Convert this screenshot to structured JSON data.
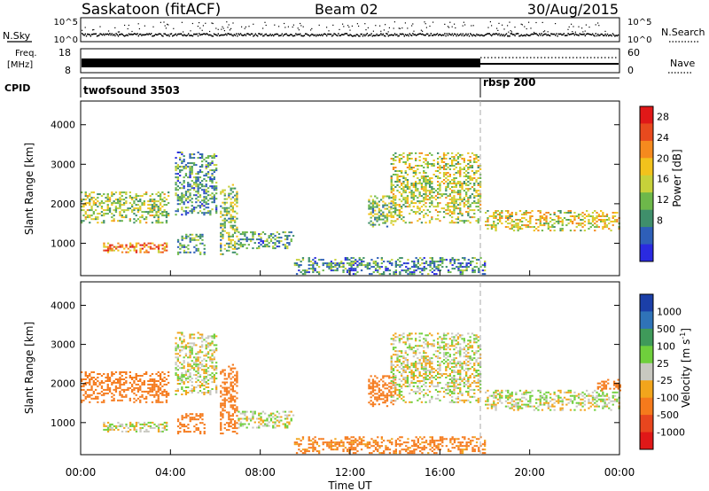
{
  "header": {
    "station": "Saskatoon (fitACF)",
    "beam": "Beam 02",
    "date": "30/Aug/2015"
  },
  "strip_panels": {
    "nsky": {
      "label": "N.Sky",
      "ticks": [
        "10^5",
        "10^0"
      ],
      "right_ticks": [
        "10^5",
        "10^0"
      ],
      "right_label": "N.Search"
    },
    "freq": {
      "label_line1": "Freq.",
      "label_line2": "[MHz]",
      "ticks": [
        "18",
        "8"
      ],
      "right_ticks": [
        "60",
        "0"
      ],
      "right_label": "Nave"
    },
    "cpid": {
      "label": "CPID",
      "programs": [
        {
          "name": "twofsound 3503",
          "start_hour": 0
        },
        {
          "name": "rbsp 200",
          "start_hour": 18
        }
      ]
    }
  },
  "chart_data": [
    {
      "type": "heatmap",
      "title": "",
      "xlabel": "",
      "ylabel": "Slant Range [km]",
      "x_range_hours": [
        0,
        24
      ],
      "ylim": [
        180,
        4600
      ],
      "yticks": [
        "1000",
        "2000",
        "3000",
        "4000"
      ],
      "colorbar": {
        "label": "Power [dB]",
        "ticks": [
          "8",
          "12",
          "16",
          "20",
          "24",
          "28"
        ],
        "range": [
          0,
          30
        ],
        "colors": [
          "#2a2ae0",
          "#2e5fb8",
          "#3f8f6b",
          "#6db84a",
          "#c7d13a",
          "#f2c21c",
          "#f58a1e",
          "#e84a1e",
          "#e01818"
        ]
      },
      "echo_regions": [
        {
          "t0": 0.0,
          "t1": 3.9,
          "r0": 1500,
          "r1": 2300,
          "value": 14
        },
        {
          "t0": 1.0,
          "t1": 3.8,
          "r0": 750,
          "r1": 1000,
          "value": 22
        },
        {
          "t0": 4.2,
          "t1": 6.0,
          "r0": 1700,
          "r1": 3300,
          "value": 9
        },
        {
          "t0": 4.3,
          "t1": 5.5,
          "r0": 700,
          "r1": 1200,
          "value": 10
        },
        {
          "t0": 6.2,
          "t1": 7.0,
          "r0": 700,
          "r1": 2500,
          "value": 13
        },
        {
          "t0": 7.0,
          "t1": 9.5,
          "r0": 850,
          "r1": 1300,
          "value": 9
        },
        {
          "t0": 9.5,
          "t1": 18.0,
          "r0": 200,
          "r1": 650,
          "value": 8
        },
        {
          "t0": 12.8,
          "t1": 14.0,
          "r0": 1400,
          "r1": 2200,
          "value": 12
        },
        {
          "t0": 13.8,
          "t1": 17.8,
          "r0": 1500,
          "r1": 3300,
          "value": 15
        },
        {
          "t0": 18.0,
          "t1": 24.0,
          "r0": 1300,
          "r1": 1800,
          "value": 16
        }
      ]
    },
    {
      "type": "heatmap",
      "title": "",
      "xlabel": "Time UT",
      "ylabel": "Slant Range [km]",
      "x_range_hours": [
        0,
        24
      ],
      "ylim": [
        180,
        4600
      ],
      "yticks": [
        "1000",
        "2000",
        "3000",
        "4000"
      ],
      "xticks": [
        "00:00",
        "04:00",
        "08:00",
        "12:00",
        "16:00",
        "20:00",
        "00:00"
      ],
      "colorbar": {
        "label": "Velocity [m s",
        "label_superscript": "-1",
        "label_end": "]",
        "ticks": [
          "1000",
          "500",
          "100",
          "25",
          "-25",
          "-100",
          "-500",
          "-1000"
        ],
        "colors": [
          "#1b3fa8",
          "#2f73b8",
          "#3f9a5a",
          "#6fcf3c",
          "#c8c8c0",
          "#f2a51c",
          "#f57a1c",
          "#e8461e",
          "#e01818"
        ]
      },
      "echo_regions": [
        {
          "t0": 0.0,
          "t1": 3.9,
          "r0": 1500,
          "r1": 2300,
          "value": -300
        },
        {
          "t0": 1.0,
          "t1": 3.8,
          "r0": 750,
          "r1": 1000,
          "value": 0
        },
        {
          "t0": 4.2,
          "t1": 6.0,
          "r0": 1700,
          "r1": 3300,
          "value": 0
        },
        {
          "t0": 4.3,
          "t1": 5.5,
          "r0": 700,
          "r1": 1200,
          "value": -400
        },
        {
          "t0": 6.2,
          "t1": 7.0,
          "r0": 700,
          "r1": 2500,
          "value": -200
        },
        {
          "t0": 7.0,
          "t1": 9.5,
          "r0": 850,
          "r1": 1300,
          "value": 0
        },
        {
          "t0": 9.5,
          "t1": 18.0,
          "r0": 200,
          "r1": 650,
          "value": -150
        },
        {
          "t0": 12.8,
          "t1": 14.0,
          "r0": 1400,
          "r1": 2200,
          "value": -300
        },
        {
          "t0": 13.8,
          "t1": 17.8,
          "r0": 1500,
          "r1": 3300,
          "value": 0
        },
        {
          "t0": 18.0,
          "t1": 24.0,
          "r0": 1300,
          "r1": 1800,
          "value": 0
        },
        {
          "t0": 23.0,
          "t1": 24.0,
          "r0": 1800,
          "r1": 2100,
          "value": -400
        }
      ]
    }
  ]
}
